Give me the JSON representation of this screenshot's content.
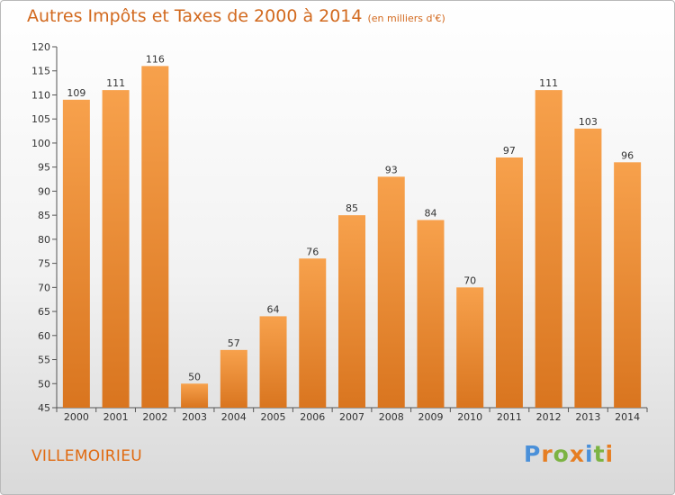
{
  "title": "Autres Impôts et Taxes de 2000 à 2014",
  "subtitle": "(en milliers d'€)",
  "commune": "VILLEMOIRIEU",
  "logo": {
    "letters": [
      "P",
      "r",
      "o",
      "x",
      "i",
      "t",
      "i"
    ],
    "colors": [
      "#4a90d9",
      "#e67e22",
      "#7cb342",
      "#e67e22",
      "#4a90d9",
      "#7cb342",
      "#e67e22"
    ]
  },
  "colors": {
    "bar_top": "#f7a14c",
    "bar_bottom": "#d9751f",
    "title": "#d2691e"
  },
  "chart_data": {
    "type": "bar",
    "title": "Autres Impôts et Taxes de 2000 à 2014",
    "categories": [
      "2000",
      "2001",
      "2002",
      "2003",
      "2004",
      "2005",
      "2006",
      "2007",
      "2008",
      "2009",
      "2010",
      "2011",
      "2012",
      "2013",
      "2014"
    ],
    "values": [
      109,
      111,
      116,
      50,
      57,
      64,
      76,
      85,
      93,
      84,
      70,
      97,
      111,
      103,
      96
    ],
    "ylim": [
      45,
      120
    ],
    "yticks": [
      45,
      50,
      55,
      60,
      65,
      70,
      75,
      80,
      85,
      90,
      95,
      100,
      105,
      110,
      115,
      120
    ],
    "xlabel": "",
    "ylabel": "",
    "grid": false
  }
}
